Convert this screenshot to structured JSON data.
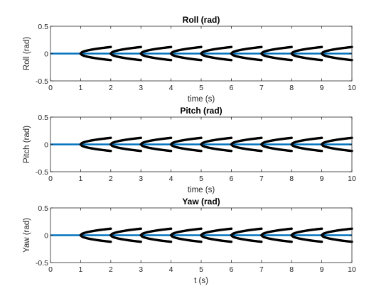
{
  "chart_data": [
    {
      "type": "line",
      "title": "Roll (rad)",
      "xlabel": "time (s)",
      "ylabel": "Roll (rad)",
      "xlim": [
        0,
        10
      ],
      "ylim": [
        -0.5,
        0.5
      ],
      "xticks": [
        0,
        1,
        2,
        3,
        4,
        5,
        6,
        7,
        8,
        9,
        10
      ],
      "yticks": [
        -0.5,
        0,
        0.5
      ],
      "xtick_labels": [
        "0",
        "1",
        "2",
        "3",
        "4",
        "5",
        "6",
        "7",
        "8",
        "9",
        "10"
      ],
      "ytick_labels": [
        "-0.5",
        "0",
        "0.5"
      ],
      "grid": false,
      "series": [
        {
          "color": "#0072BD",
          "x": [
            0,
            10
          ],
          "y": [
            0,
            0
          ]
        }
      ],
      "bounds": {
        "color": "#000000",
        "period": 1,
        "start": 1,
        "duration": 1,
        "amplitude": 0.12
      }
    },
    {
      "type": "line",
      "title": "Pitch (rad)",
      "xlabel": "time (s)",
      "ylabel": "Pitch (rad)",
      "xlim": [
        0,
        10
      ],
      "ylim": [
        -0.5,
        0.5
      ],
      "xticks": [
        0,
        1,
        2,
        3,
        4,
        5,
        6,
        7,
        8,
        9,
        10
      ],
      "yticks": [
        -0.5,
        0,
        0.5
      ],
      "xtick_labels": [
        "0",
        "1",
        "2",
        "3",
        "4",
        "5",
        "6",
        "7",
        "8",
        "9",
        "10"
      ],
      "ytick_labels": [
        "-0.5",
        "0",
        "0.5"
      ],
      "grid": false,
      "series": [
        {
          "color": "#0072BD",
          "x": [
            0,
            10
          ],
          "y": [
            0,
            0
          ]
        }
      ],
      "bounds": {
        "color": "#000000",
        "period": 1,
        "start": 1,
        "duration": 1,
        "amplitude": 0.12
      }
    },
    {
      "type": "line",
      "title": "Yaw (rad)",
      "xlabel": "t (s)",
      "ylabel": "Yaw (rad)",
      "xlim": [
        0,
        10
      ],
      "ylim": [
        -0.5,
        0.5
      ],
      "xticks": [
        0,
        1,
        2,
        3,
        4,
        5,
        6,
        7,
        8,
        9,
        10
      ],
      "yticks": [
        -0.5,
        0,
        0.5
      ],
      "xtick_labels": [
        "0",
        "1",
        "2",
        "3",
        "4",
        "5",
        "6",
        "7",
        "8",
        "9",
        "10"
      ],
      "ytick_labels": [
        "-0.5",
        "0",
        "0.5"
      ],
      "grid": false,
      "series": [
        {
          "color": "#0072BD",
          "x": [
            0,
            10
          ],
          "y": [
            0,
            0
          ]
        }
      ],
      "bounds": {
        "color": "#000000",
        "period": 1,
        "start": 1,
        "duration": 1,
        "amplitude": 0.12
      }
    }
  ]
}
